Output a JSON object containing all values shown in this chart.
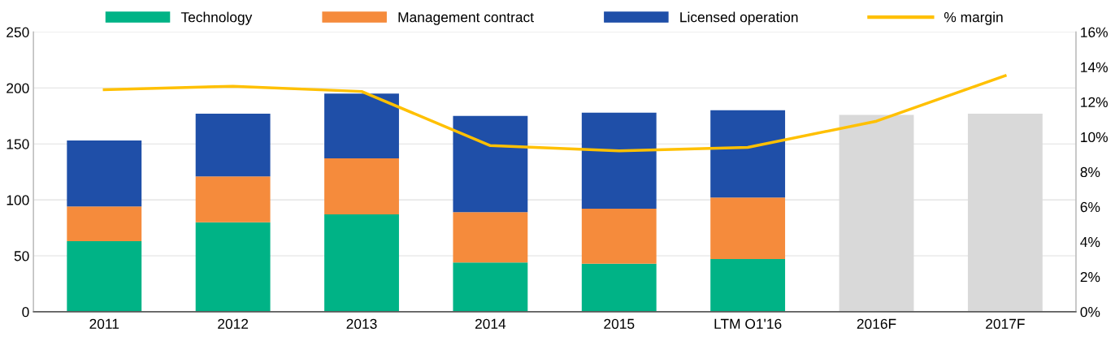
{
  "chart_data": {
    "type": "bar",
    "stacked": true,
    "categories": [
      "2011",
      "2012",
      "2013",
      "2014",
      "2015",
      "LTM O1'16",
      "2016F",
      "2017F"
    ],
    "series": [
      {
        "name": "Technology",
        "color": "#00b386",
        "values": [
          63,
          80,
          87,
          44,
          43,
          47,
          null,
          null
        ]
      },
      {
        "name": "Management contract",
        "color": "#f58b3c",
        "values": [
          31,
          41,
          50,
          45,
          49,
          55,
          null,
          null
        ]
      },
      {
        "name": "Licensed operation",
        "color": "#1f4fa8",
        "values": [
          59,
          56,
          58,
          86,
          86,
          78,
          null,
          null
        ]
      },
      {
        "color": "#d9d9d9",
        "values": [
          null,
          null,
          null,
          null,
          null,
          null,
          176,
          177
        ]
      },
      {
        "name": "% margin",
        "type": "line",
        "axis": "y2",
        "color": "#ffc000",
        "values": [
          12.7,
          12.9,
          12.6,
          9.5,
          9.2,
          9.4,
          10.9,
          13.5
        ]
      }
    ],
    "ylim": [
      0,
      250
    ],
    "yticks": [
      0,
      50,
      100,
      150,
      200,
      250
    ],
    "y2lim": [
      0,
      16
    ],
    "y2ticks": [
      {
        "value": 0,
        "label": "0%"
      },
      {
        "value": 2,
        "label": "2%"
      },
      {
        "value": 4,
        "label": "4%"
      },
      {
        "value": 6,
        "label": "6%"
      },
      {
        "value": 8,
        "label": "8%"
      },
      {
        "value": 10,
        "label": "10%"
      },
      {
        "value": 12,
        "label": "12%"
      },
      {
        "value": 14,
        "label": "14%"
      },
      {
        "value": 16,
        "label": "16%"
      }
    ],
    "grid": "y",
    "legend": "top"
  }
}
